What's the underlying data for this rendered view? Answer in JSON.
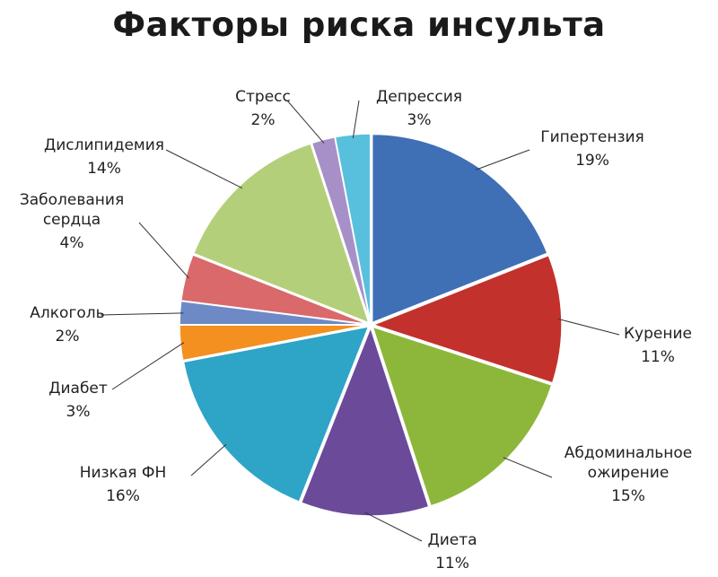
{
  "chart_data": {
    "type": "pie",
    "title": "Факторы риска инсульта",
    "slices": [
      {
        "label": "Гипертензия",
        "pct_text": "19%",
        "value": 19,
        "color": "#3f6fb5"
      },
      {
        "label": "Курение",
        "pct_text": "11%",
        "value": 11,
        "color": "#c3312d"
      },
      {
        "label": "Абдоминальное ожирение",
        "label_lines": [
          "Абдоминальное",
          "ожирение"
        ],
        "pct_text": "15%",
        "value": 15,
        "color": "#8db73a"
      },
      {
        "label": "Диета",
        "pct_text": "11%",
        "value": 11,
        "color": "#6b4a9a"
      },
      {
        "label": "Низкая ФН",
        "pct_text": "16%",
        "value": 16,
        "color": "#2ea4c6"
      },
      {
        "label": "Диабет",
        "pct_text": "3%",
        "value": 3,
        "color": "#f3901f"
      },
      {
        "label": "Алкоголь",
        "pct_text": "2%",
        "value": 2,
        "color": "#6d8ac6"
      },
      {
        "label": "Заболевания сердца",
        "label_lines": [
          "Заболевания",
          "сердца"
        ],
        "pct_text": "4%",
        "value": 4,
        "color": "#d9696a"
      },
      {
        "label": "Дислипидемия",
        "pct_text": "14%",
        "value": 14,
        "color": "#b3cf7a"
      },
      {
        "label": "Стресс",
        "pct_text": "2%",
        "value": 2,
        "color": "#a78fc8"
      },
      {
        "label": "Депрессия",
        "pct_text": "3%",
        "value": 3,
        "color": "#58c0dd"
      }
    ]
  }
}
